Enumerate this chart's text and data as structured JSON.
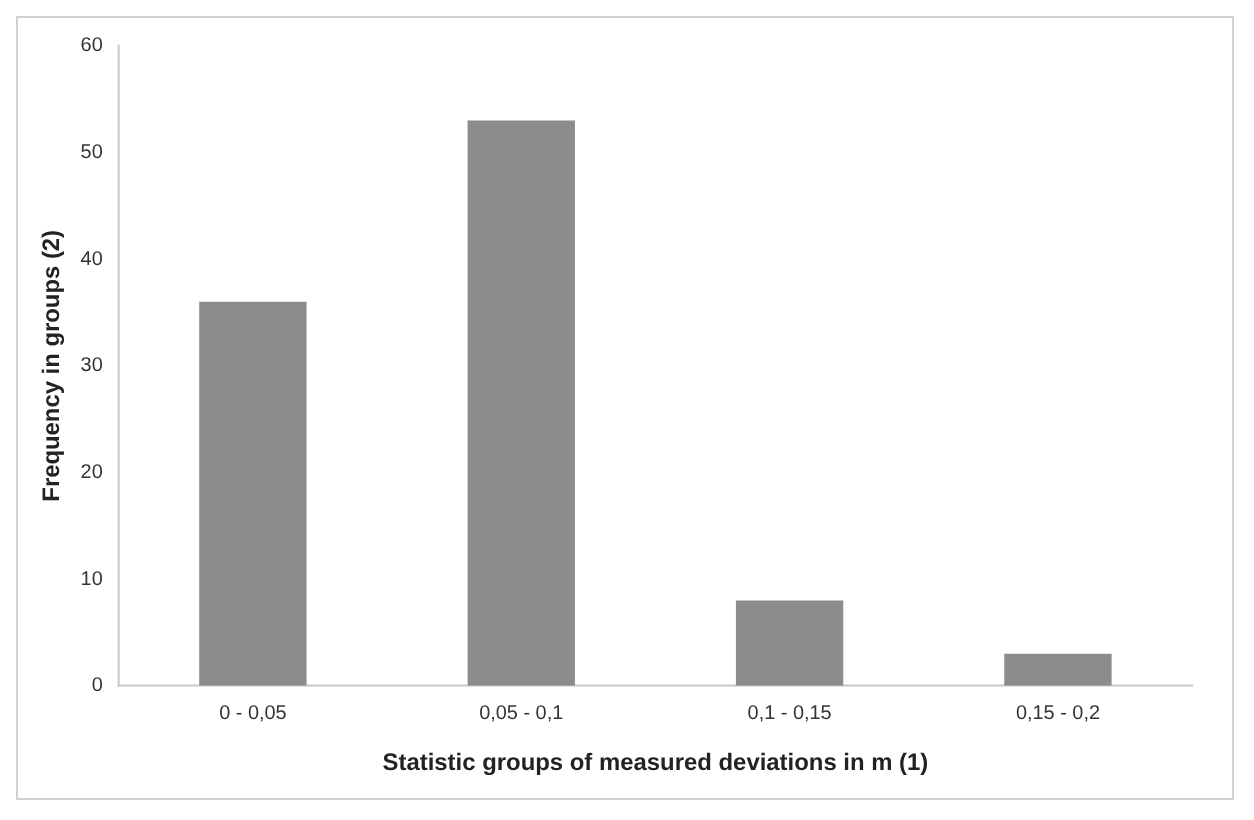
{
  "chart_data": {
    "type": "bar",
    "xlabel": "Statistic groups of measured deviations in m (1)",
    "ylabel": "Frequency in groups (2)",
    "categories": [
      "0 - 0,05",
      "0,05 - 0,1",
      "0,1 - 0,15",
      "0,15 - 0,2"
    ],
    "values": [
      36,
      53,
      8,
      3
    ],
    "color": "#8c8c8c",
    "ylim": [
      0,
      60
    ],
    "yticks": [
      0,
      10,
      20,
      30,
      40,
      50,
      60
    ],
    "grid": false,
    "legend": false
  }
}
